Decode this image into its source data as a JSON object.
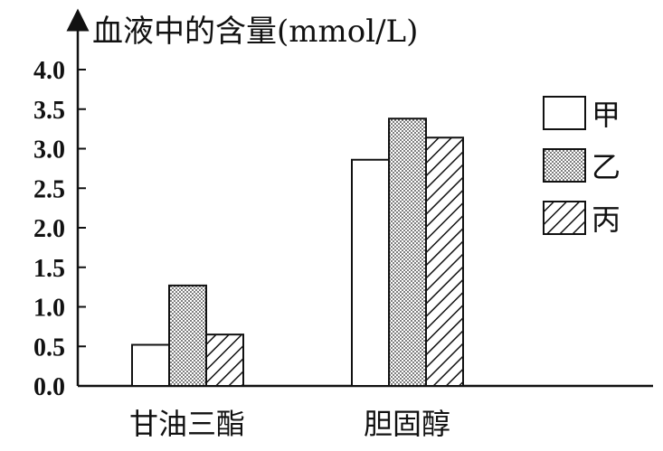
{
  "chart_data": {
    "type": "bar",
    "title": "",
    "ylabel": "血液中的含量(mmol/L)",
    "xlabel": "",
    "categories": [
      "甘油三酯",
      "胆固醇"
    ],
    "series": [
      {
        "name": "甲",
        "pattern": "none",
        "values": [
          0.52,
          2.86
        ]
      },
      {
        "name": "乙",
        "pattern": "dots",
        "values": [
          1.27,
          3.38
        ]
      },
      {
        "name": "丙",
        "pattern": "hatch",
        "values": [
          0.65,
          3.14
        ]
      }
    ],
    "ylim": [
      0,
      4.0
    ],
    "yticks": [
      "0.0",
      "0.5",
      "1.0",
      "1.5",
      "2.0",
      "2.5",
      "3.0",
      "3.5",
      "4.0"
    ],
    "grid": false,
    "legend_position": "top-right"
  }
}
